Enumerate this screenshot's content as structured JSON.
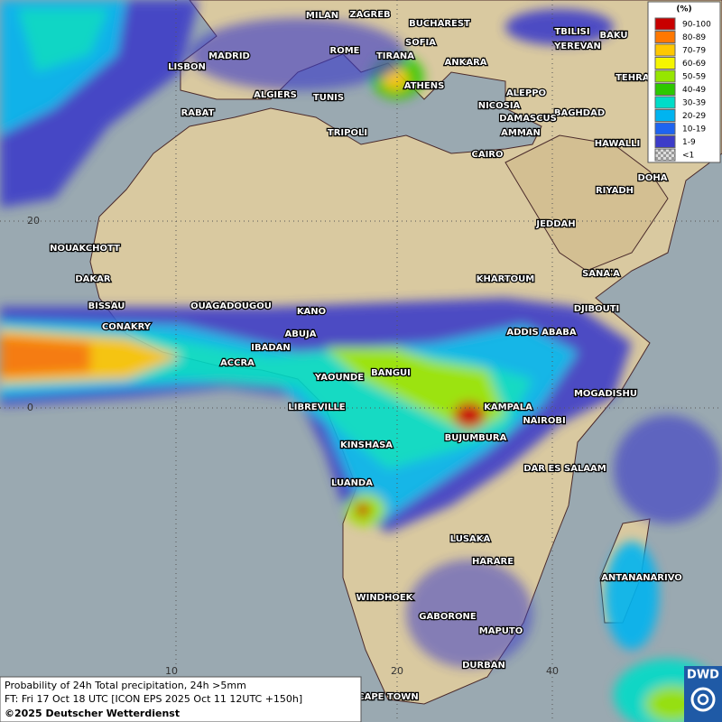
{
  "legend": {
    "title": "(%)",
    "items": [
      {
        "label": "90-100",
        "color": "#c80000"
      },
      {
        "label": "80-89",
        "color": "#ff7800"
      },
      {
        "label": "70-79",
        "color": "#ffc800"
      },
      {
        "label": "60-69",
        "color": "#f5f500"
      },
      {
        "label": "50-59",
        "color": "#96e600"
      },
      {
        "label": "40-49",
        "color": "#2dc800"
      },
      {
        "label": "30-39",
        "color": "#00dcc8"
      },
      {
        "label": "20-29",
        "color": "#00b4f0"
      },
      {
        "label": "10-19",
        "color": "#1e64f0"
      },
      {
        "label": "1-9",
        "color": "#3c3cc8"
      },
      {
        "label": "<1",
        "color": "#b4b4b4"
      }
    ]
  },
  "cities": [
    "MILAN",
    "ZAGREB",
    "BUCHAREST",
    "TBILISI",
    "BAKU",
    "ROME",
    "SOFIA",
    "TIRANA",
    "YEREVAN",
    "MADRID",
    "LISBON",
    "ANKARA",
    "TEHRAN",
    "ALGIERS",
    "TUNIS",
    "ATHENS",
    "ALEPPO",
    "RABAT",
    "NICOSIA",
    "BAGHDAD",
    "DAMASCUS",
    "TRIPOLI",
    "AMMAN",
    "HAWALLI",
    "CAIRO",
    "DOHA",
    "RIYADH",
    "NOUAKCHOTT",
    "JEDDAH",
    "DAKAR",
    "KHARTOUM",
    "SANA'A",
    "BISSAU",
    "OUAGADOUGOU",
    "DJIBOUTI",
    "KANO",
    "CONAKRY",
    "ABUJA",
    "ADDIS ABABA",
    "IBADAN",
    "ACCRA",
    "YAOUNDE",
    "BANGUI",
    "MOGADISHU",
    "LIBREVILLE",
    "KAMPALA",
    "NAIROBI",
    "KINSHASA",
    "BUJUMBURA",
    "DAR ES SALAAM",
    "LUANDA",
    "LUSAKA",
    "HARARE",
    "ANTANANARIVO",
    "WINDHOEK",
    "GABORONE",
    "MAPUTO",
    "DURBAN",
    "CAPE TOWN"
  ],
  "grid_labels": {
    "latitudes": [
      "20",
      "0"
    ],
    "longitudes": [
      "10",
      "20",
      "40"
    ]
  },
  "footer": [
    "Probability of 24h Total precipitation, 24h >5mm",
    "FT: Fri 17 Oct 18 UTC [ICON EPS 2025 Oct 11 12UTC +150h]",
    "©2025 Deutscher Wetterdienst"
  ],
  "logo": "DWD"
}
